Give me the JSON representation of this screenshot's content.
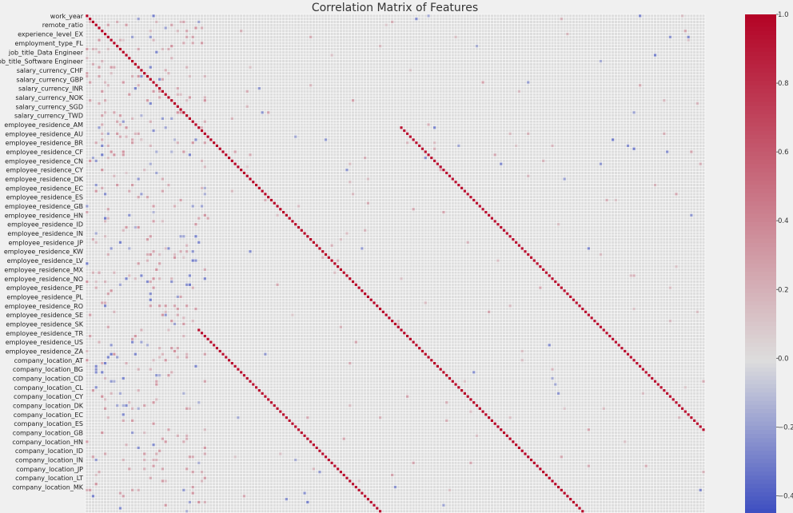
{
  "chart_data": {
    "type": "heatmap",
    "title": "Correlation Matrix of Features",
    "colormap": "coolwarm",
    "colors": {
      "high": "#b40426",
      "mid": "#dddddd",
      "low": "#3b4cc0",
      "grid": "#ffffff",
      "background": "#f0f0f0"
    },
    "n_features_visible": 205,
    "y_tick_labels": [
      "work_year",
      "remote_ratio",
      "experience_level_EX",
      "employment_type_FL",
      "job_title_Data Engineer",
      "job_title_Software Engineer",
      "salary_currency_CHF",
      "salary_currency_GBP",
      "salary_currency_INR",
      "salary_currency_NOK",
      "salary_currency_SGD",
      "salary_currency_TWD",
      "employee_residence_AM",
      "employee_residence_AU",
      "employee_residence_BR",
      "employee_residence_CF",
      "employee_residence_CN",
      "employee_residence_CY",
      "employee_residence_DK",
      "employee_residence_EC",
      "employee_residence_ES",
      "employee_residence_GB",
      "employee_residence_HN",
      "employee_residence_ID",
      "employee_residence_IN",
      "employee_residence_JP",
      "employee_residence_KW",
      "employee_residence_LV",
      "employee_residence_MX",
      "employee_residence_NO",
      "employee_residence_PE",
      "employee_residence_PL",
      "employee_residence_RO",
      "employee_residence_SE",
      "employee_residence_SK",
      "employee_residence_TR",
      "employee_residence_US",
      "employee_residence_ZA",
      "company_location_AT",
      "company_location_BG",
      "company_location_CD",
      "company_location_CL",
      "company_location_CY",
      "company_location_DK",
      "company_location_EC",
      "company_location_ES",
      "company_location_GB",
      "company_location_HN",
      "company_location_ID",
      "company_location_IN",
      "company_location_JP",
      "company_location_LT",
      "company_location_MK"
    ],
    "colorbar": {
      "range": [
        -0.45,
        1.0
      ],
      "ticks": [
        {
          "value": 1.0,
          "label": "1.0"
        },
        {
          "value": 0.8,
          "label": "0.8"
        },
        {
          "value": 0.6,
          "label": "0.6"
        },
        {
          "value": 0.4,
          "label": "0.4"
        },
        {
          "value": 0.2,
          "label": "0.2"
        },
        {
          "value": 0.0,
          "label": "0.0"
        },
        {
          "value": -0.2,
          "label": "−0.2"
        },
        {
          "value": -0.4,
          "label": "−0.4"
        }
      ]
    },
    "features": {
      "diagonal": 1.0,
      "off_diagonal_band_offset": 67,
      "off_diagonal_band_value": 0.95,
      "weak_positive_value": 0.35,
      "weak_negative_value": -0.3
    }
  }
}
